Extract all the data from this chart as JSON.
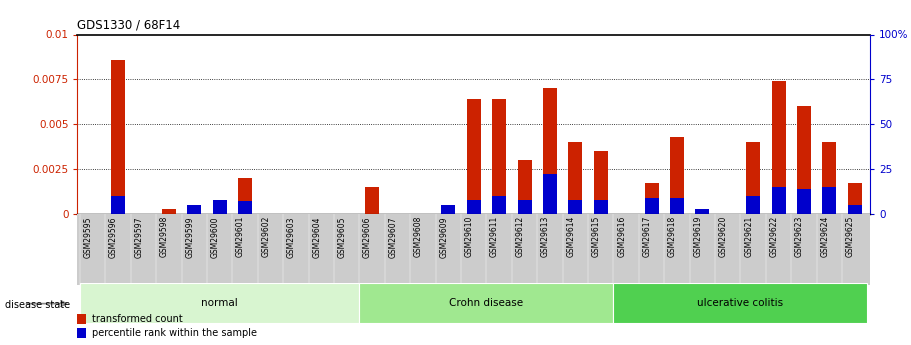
{
  "title": "GDS1330 / 68F14",
  "samples": [
    "GSM29595",
    "GSM29596",
    "GSM29597",
    "GSM29598",
    "GSM29599",
    "GSM29600",
    "GSM29601",
    "GSM29602",
    "GSM29603",
    "GSM29604",
    "GSM29605",
    "GSM29606",
    "GSM29607",
    "GSM29608",
    "GSM29609",
    "GSM29610",
    "GSM29611",
    "GSM29612",
    "GSM29613",
    "GSM29614",
    "GSM29615",
    "GSM29616",
    "GSM29617",
    "GSM29618",
    "GSM29619",
    "GSM29620",
    "GSM29621",
    "GSM29622",
    "GSM29623",
    "GSM29624",
    "GSM29625"
  ],
  "transformed_count": [
    0.0,
    0.0086,
    0.0,
    0.0003,
    0.0004,
    0.0004,
    0.002,
    0.0,
    0.0,
    0.0,
    0.0,
    0.0015,
    0.0,
    0.0,
    0.0,
    0.0064,
    0.0064,
    0.003,
    0.007,
    0.004,
    0.0035,
    0.0,
    0.0017,
    0.0043,
    0.0003,
    0.0,
    0.004,
    0.0074,
    0.006,
    0.004,
    0.0017
  ],
  "percentile_rank": [
    0,
    10,
    0,
    0,
    5,
    8,
    7,
    0,
    0,
    0,
    0,
    0,
    0,
    0,
    5,
    8,
    10,
    8,
    22,
    8,
    8,
    0,
    9,
    9,
    3,
    0,
    10,
    15,
    14,
    15,
    5
  ],
  "disease_groups": [
    {
      "label": "normal",
      "start": 0,
      "end": 10,
      "color": "#d8f5d0"
    },
    {
      "label": "Crohn disease",
      "start": 11,
      "end": 20,
      "color": "#a0e890"
    },
    {
      "label": "ulcerative colitis",
      "start": 21,
      "end": 30,
      "color": "#50d050"
    }
  ],
  "ylim_left": [
    0,
    0.01
  ],
  "ylim_right": [
    0,
    100
  ],
  "yticks_left": [
    0,
    0.0025,
    0.005,
    0.0075,
    0.01
  ],
  "ytick_labels_left": [
    "0",
    "0.0025",
    "0.005",
    "0.0075",
    "0.01"
  ],
  "yticks_right": [
    0,
    25,
    50,
    75,
    100
  ],
  "ytick_labels_right": [
    "0",
    "25",
    "50",
    "75",
    "100%"
  ],
  "bar_color_red": "#cc2200",
  "bar_color_blue": "#0000cc",
  "bar_width": 0.55,
  "disease_state_label": "disease state"
}
